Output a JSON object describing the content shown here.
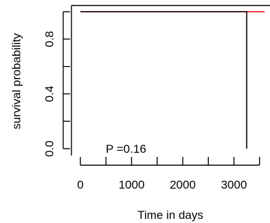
{
  "chart_data": {
    "type": "line",
    "xlabel": "Time in days",
    "ylabel": "survival probability",
    "x_ticks": [
      0,
      1000,
      2000,
      3000
    ],
    "x_minor_ticks": [
      500,
      1500,
      2500,
      3500
    ],
    "y_ticks": [
      "0.0",
      "0.4",
      "0.8"
    ],
    "y_tick_values": [
      0.0,
      0.4,
      0.8
    ],
    "y_minor_ticks": [
      0.2,
      0.6,
      1.0
    ],
    "xlim": [
      -100,
      3600
    ],
    "ylim": [
      -0.02,
      1.0
    ],
    "annotation": {
      "text": "P =0.16",
      "x": 500,
      "y": 0.0
    },
    "series": [
      {
        "color": "#000000",
        "points": [
          [
            0,
            1.0
          ],
          [
            3250,
            1.0
          ],
          [
            3250,
            0.0
          ]
        ]
      },
      {
        "color": "#ff0000",
        "points": [
          [
            0,
            1.0
          ],
          [
            3600,
            1.0
          ]
        ]
      }
    ],
    "grid": false
  }
}
